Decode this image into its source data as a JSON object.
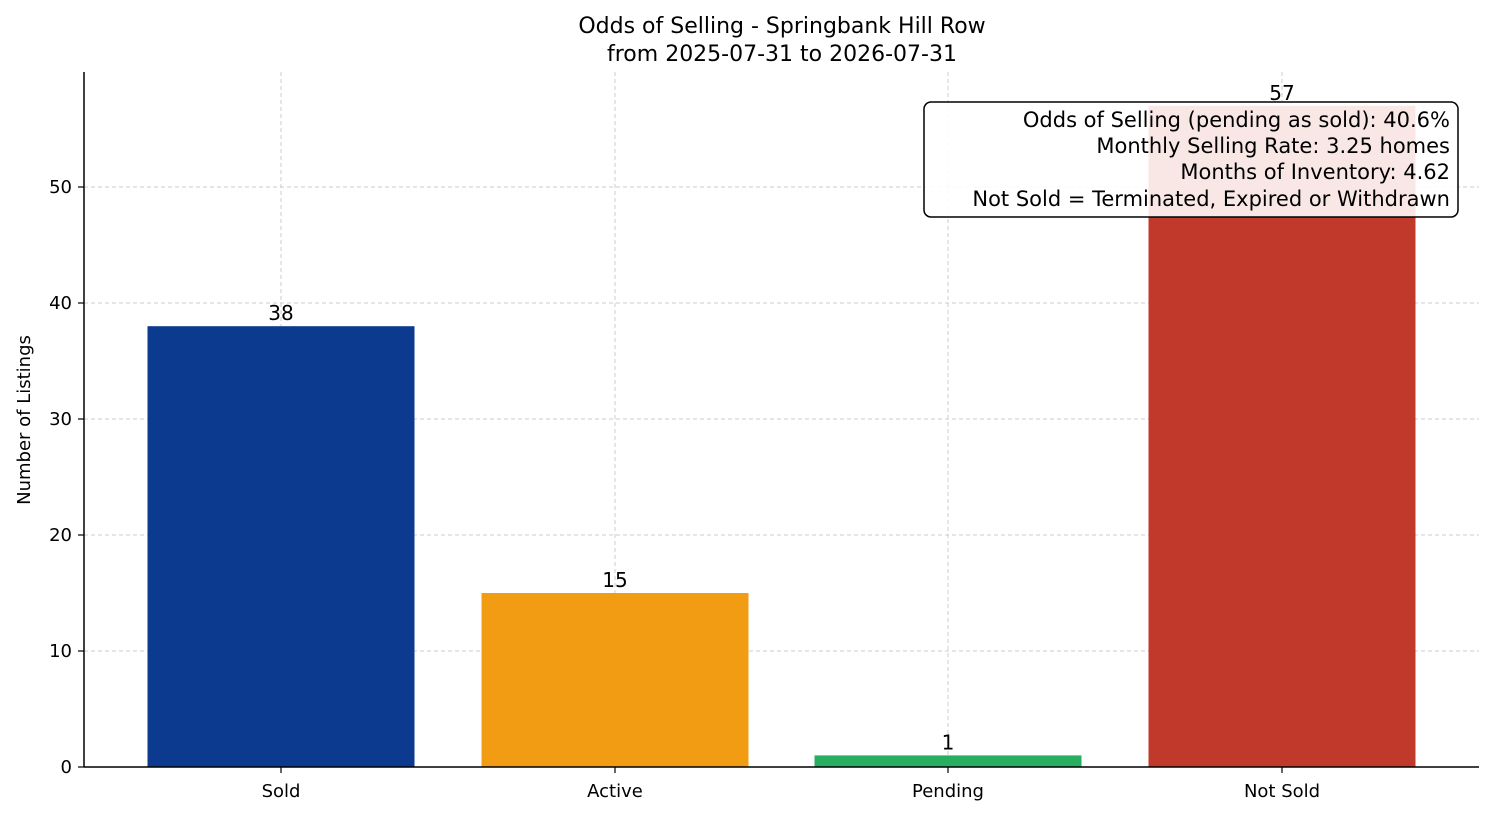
{
  "chart_data": {
    "type": "bar",
    "title": "Odds of Selling - Springbank Hill Row",
    "subtitle": "from 2025-07-31 to 2026-07-31",
    "xlabel": "",
    "ylabel": "Number of Listings",
    "categories": [
      "Sold",
      "Active",
      "Pending",
      "Not Sold"
    ],
    "values": [
      38,
      15,
      1,
      57
    ],
    "colors": [
      "#0b3a8f",
      "#f29c14",
      "#27ae60",
      "#c0392b"
    ],
    "ylim": [
      0,
      60
    ],
    "yticks": [
      0,
      10,
      20,
      30,
      40,
      50
    ],
    "grid": true,
    "data_labels": [
      "38",
      "15",
      "1",
      "57"
    ],
    "annotation": {
      "placement": "top-right",
      "lines": [
        "Odds of Selling (pending as sold): 40.6%",
        "Monthly Selling Rate: 3.25 homes",
        "Months of Inventory: 4.62",
        "Not Sold = Terminated, Expired or Withdrawn"
      ]
    }
  }
}
